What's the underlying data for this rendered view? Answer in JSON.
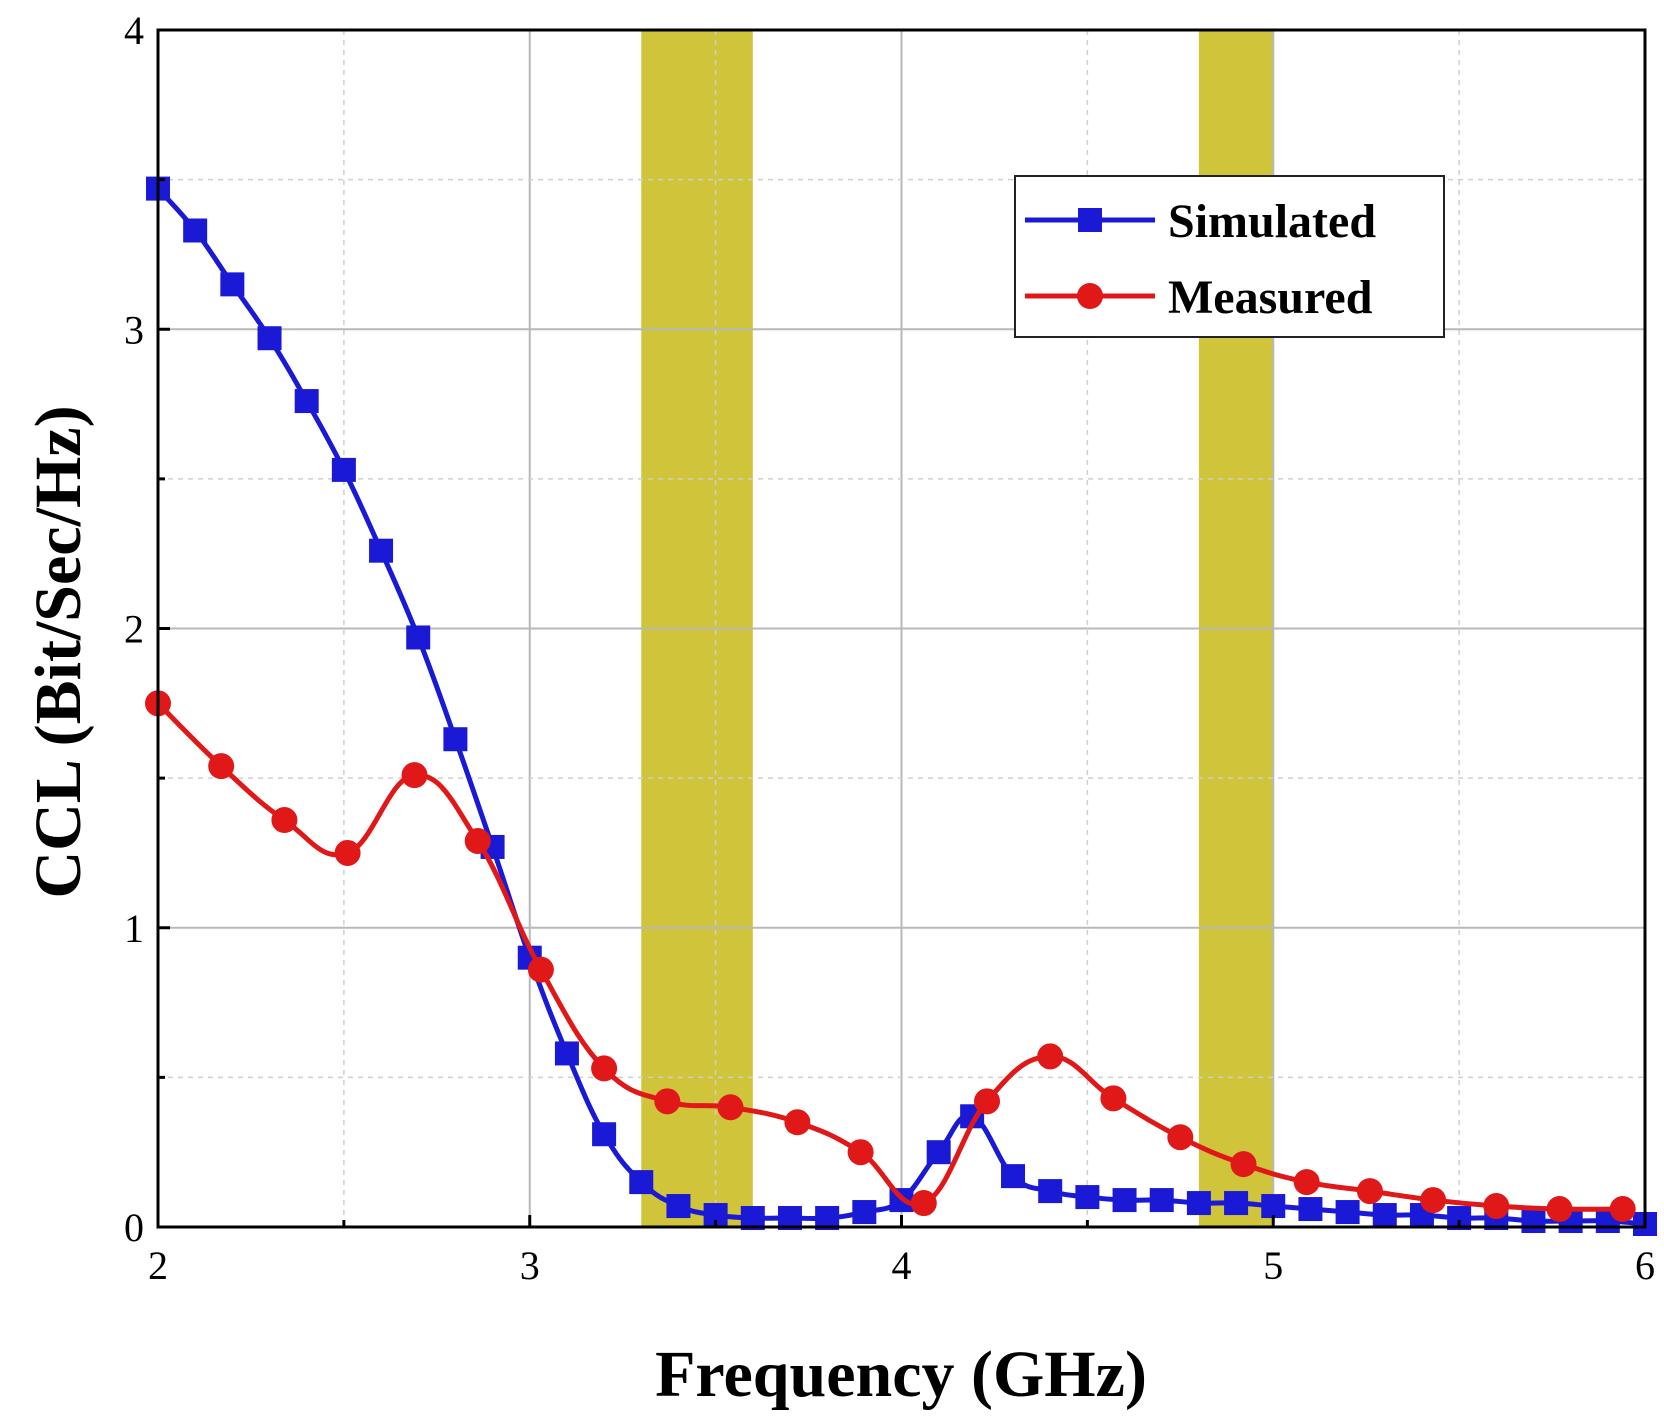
{
  "chart_data": {
    "type": "line",
    "title": "",
    "xlabel": "Frequency (GHz)",
    "ylabel": "CCL (Bit/Sec/Hz)",
    "xlim": [
      2,
      6
    ],
    "ylim": [
      0,
      4
    ],
    "xticks": [
      "2",
      "3",
      "4",
      "5",
      "6"
    ],
    "yticks": [
      "0",
      "1",
      "2",
      "3",
      "4"
    ],
    "grid": true,
    "legend_position": "top-right",
    "shaded_bands": [
      {
        "x_start": 3.3,
        "x_end": 3.6,
        "color": "#cfc43a"
      },
      {
        "x_start": 4.8,
        "x_end": 5.0,
        "color": "#cfc43a"
      }
    ],
    "series": [
      {
        "name": "Simulated",
        "color": "#1a1ad6",
        "marker": "square",
        "x": [
          2.0,
          2.1,
          2.2,
          2.3,
          2.4,
          2.5,
          2.6,
          2.7,
          2.8,
          2.9,
          3.0,
          3.1,
          3.2,
          3.3,
          3.4,
          3.5,
          3.6,
          3.7,
          3.8,
          3.9,
          4.0,
          4.1,
          4.19,
          4.3,
          4.4,
          4.5,
          4.6,
          4.7,
          4.8,
          4.9,
          5.0,
          5.1,
          5.2,
          5.3,
          5.4,
          5.5,
          5.6,
          5.7,
          5.8,
          5.9,
          6.0
        ],
        "y": [
          3.47,
          3.33,
          3.15,
          2.97,
          2.76,
          2.53,
          2.26,
          1.97,
          1.63,
          1.27,
          0.9,
          0.58,
          0.31,
          0.15,
          0.07,
          0.04,
          0.03,
          0.03,
          0.03,
          0.05,
          0.09,
          0.25,
          0.37,
          0.17,
          0.12,
          0.1,
          0.09,
          0.09,
          0.08,
          0.08,
          0.07,
          0.06,
          0.05,
          0.04,
          0.04,
          0.03,
          0.03,
          0.02,
          0.02,
          0.02,
          0.01
        ]
      },
      {
        "name": "Measured",
        "color": "#e01818",
        "marker": "circle",
        "x": [
          2.0,
          2.17,
          2.34,
          2.51,
          2.69,
          2.86,
          3.03,
          3.2,
          3.37,
          3.54,
          3.72,
          3.89,
          4.06,
          4.23,
          4.4,
          4.57,
          4.75,
          4.92,
          5.09,
          5.26,
          5.43,
          5.6,
          5.77,
          5.94
        ],
        "y": [
          1.75,
          1.54,
          1.36,
          1.25,
          1.51,
          1.29,
          0.86,
          0.53,
          0.42,
          0.4,
          0.35,
          0.25,
          0.08,
          0.42,
          0.57,
          0.43,
          0.3,
          0.21,
          0.15,
          0.12,
          0.09,
          0.07,
          0.06,
          0.06
        ]
      }
    ]
  }
}
